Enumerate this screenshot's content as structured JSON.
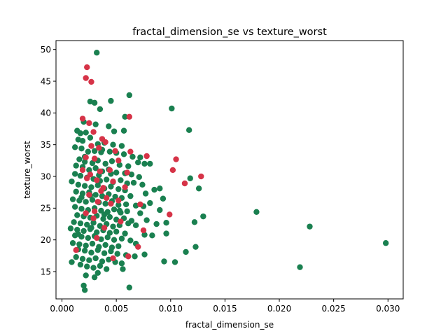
{
  "chart_data": {
    "type": "scatter",
    "title": "fractal_dimension_se vs texture_worst",
    "xlabel": "fractal_dimension_se",
    "ylabel": "texture_worst",
    "xlim": [
      -0.00055,
      0.0314
    ],
    "ylim": [
      10.7,
      51.4
    ],
    "xticks": [
      0.0,
      0.005,
      0.01,
      0.015,
      0.02,
      0.025,
      0.03
    ],
    "xtick_labels": [
      "0.000",
      "0.005",
      "0.010",
      "0.015",
      "0.020",
      "0.025",
      "0.030"
    ],
    "yticks": [
      15,
      20,
      25,
      30,
      35,
      40,
      45,
      50
    ],
    "ytick_labels": [
      "15",
      "20",
      "25",
      "30",
      "35",
      "40",
      "45",
      "50"
    ],
    "grid": false,
    "legend": "none",
    "series": [
      {
        "color": "#1a8050",
        "points": [
          [
            0.0032,
            49.5
          ],
          [
            0.0062,
            42.8
          ],
          [
            0.0026,
            41.8
          ],
          [
            0.003,
            41.6
          ],
          [
            0.0045,
            41.9
          ],
          [
            0.0101,
            40.7
          ],
          [
            0.0035,
            40.6
          ],
          [
            0.0058,
            39.4
          ],
          [
            0.002,
            38.6
          ],
          [
            0.0031,
            38.2
          ],
          [
            0.0043,
            37.9
          ],
          [
            0.0117,
            37.3
          ],
          [
            0.0014,
            37.2
          ],
          [
            0.0017,
            36.8
          ],
          [
            0.0022,
            36.9
          ],
          [
            0.0048,
            37.1
          ],
          [
            0.0057,
            37.2
          ],
          [
            0.0015,
            35.8
          ],
          [
            0.0019,
            35.6
          ],
          [
            0.0026,
            36.1
          ],
          [
            0.0033,
            35.1
          ],
          [
            0.0039,
            35.3
          ],
          [
            0.0047,
            35.0
          ],
          [
            0.0055,
            34.8
          ],
          [
            0.0012,
            34.6
          ],
          [
            0.0018,
            34.4
          ],
          [
            0.0024,
            33.9
          ],
          [
            0.003,
            34.0
          ],
          [
            0.0036,
            33.8
          ],
          [
            0.0044,
            33.9
          ],
          [
            0.005,
            33.7
          ],
          [
            0.0057,
            33.5
          ],
          [
            0.0065,
            33.1
          ],
          [
            0.0072,
            33.0
          ],
          [
            0.0016,
            32.7
          ],
          [
            0.0021,
            32.3
          ],
          [
            0.0028,
            32.1
          ],
          [
            0.0033,
            32.5
          ],
          [
            0.004,
            32.0
          ],
          [
            0.0046,
            32.4
          ],
          [
            0.0053,
            31.8
          ],
          [
            0.0061,
            31.6
          ],
          [
            0.007,
            32.2
          ],
          [
            0.0076,
            32.0
          ],
          [
            0.0081,
            32.0
          ],
          [
            0.0013,
            31.7
          ],
          [
            0.0019,
            31.5
          ],
          [
            0.0025,
            31.0
          ],
          [
            0.0031,
            31.3
          ],
          [
            0.0037,
            30.8
          ],
          [
            0.0043,
            31.1
          ],
          [
            0.005,
            30.6
          ],
          [
            0.0058,
            30.5
          ],
          [
            0.0064,
            30.3
          ],
          [
            0.0071,
            29.9
          ],
          [
            0.0012,
            30.4
          ],
          [
            0.0017,
            30.1
          ],
          [
            0.0023,
            29.8
          ],
          [
            0.0029,
            29.6
          ],
          [
            0.0035,
            29.3
          ],
          [
            0.0041,
            29.5
          ],
          [
            0.0047,
            29.1
          ],
          [
            0.0054,
            29.4
          ],
          [
            0.006,
            28.9
          ],
          [
            0.0066,
            29.0
          ],
          [
            0.0118,
            29.7
          ],
          [
            0.0009,
            29.2
          ],
          [
            0.0015,
            28.7
          ],
          [
            0.0021,
            28.5
          ],
          [
            0.0027,
            28.3
          ],
          [
            0.0033,
            28.6
          ],
          [
            0.0039,
            28.1
          ],
          [
            0.0045,
            28.4
          ],
          [
            0.0052,
            28.0
          ],
          [
            0.0058,
            27.8
          ],
          [
            0.0074,
            28.7
          ],
          [
            0.0126,
            28.1
          ],
          [
            0.0013,
            27.6
          ],
          [
            0.0019,
            27.3
          ],
          [
            0.0025,
            27.5
          ],
          [
            0.0031,
            27.1
          ],
          [
            0.0037,
            26.9
          ],
          [
            0.0043,
            27.2
          ],
          [
            0.0049,
            26.8
          ],
          [
            0.0055,
            26.6
          ],
          [
            0.0063,
            26.9
          ],
          [
            0.0077,
            27.3
          ],
          [
            0.0085,
            27.9
          ],
          [
            0.009,
            28.1
          ],
          [
            0.001,
            26.4
          ],
          [
            0.0016,
            26.2
          ],
          [
            0.0022,
            26.0
          ],
          [
            0.0028,
            26.3
          ],
          [
            0.0034,
            25.9
          ],
          [
            0.004,
            25.7
          ],
          [
            0.0046,
            26.1
          ],
          [
            0.0052,
            25.5
          ],
          [
            0.0059,
            25.6
          ],
          [
            0.0068,
            25.4
          ],
          [
            0.0075,
            25.3
          ],
          [
            0.0081,
            25.8
          ],
          [
            0.0093,
            26.5
          ],
          [
            0.0012,
            25.2
          ],
          [
            0.0018,
            24.9
          ],
          [
            0.0024,
            24.7
          ],
          [
            0.003,
            25.0
          ],
          [
            0.0036,
            24.6
          ],
          [
            0.0042,
            24.4
          ],
          [
            0.0048,
            24.8
          ],
          [
            0.0054,
            24.3
          ],
          [
            0.006,
            24.5
          ],
          [
            0.0072,
            24.2
          ],
          [
            0.009,
            24.7
          ],
          [
            0.0179,
            24.4
          ],
          [
            0.0014,
            23.9
          ],
          [
            0.002,
            23.7
          ],
          [
            0.0026,
            23.5
          ],
          [
            0.0032,
            23.8
          ],
          [
            0.0038,
            23.3
          ],
          [
            0.0044,
            23.6
          ],
          [
            0.005,
            23.2
          ],
          [
            0.0057,
            23.4
          ],
          [
            0.0064,
            23.0
          ],
          [
            0.0078,
            23.1
          ],
          [
            0.013,
            23.7
          ],
          [
            0.0011,
            22.8
          ],
          [
            0.0017,
            22.6
          ],
          [
            0.0023,
            22.4
          ],
          [
            0.0029,
            22.7
          ],
          [
            0.0035,
            22.2
          ],
          [
            0.0041,
            22.5
          ],
          [
            0.0047,
            22.1
          ],
          [
            0.0053,
            22.3
          ],
          [
            0.0061,
            22.6
          ],
          [
            0.0068,
            22.3
          ],
          [
            0.0087,
            22.5
          ],
          [
            0.0096,
            22.7
          ],
          [
            0.0122,
            22.8
          ],
          [
            0.0228,
            22.1
          ],
          [
            0.0008,
            21.8
          ],
          [
            0.0014,
            21.6
          ],
          [
            0.002,
            21.4
          ],
          [
            0.0026,
            21.7
          ],
          [
            0.0032,
            21.2
          ],
          [
            0.0038,
            21.5
          ],
          [
            0.0044,
            21.1
          ],
          [
            0.005,
            21.3
          ],
          [
            0.0058,
            21.0
          ],
          [
            0.0076,
            20.8
          ],
          [
            0.0096,
            21.0
          ],
          [
            0.0012,
            20.7
          ],
          [
            0.0018,
            20.5
          ],
          [
            0.0024,
            20.3
          ],
          [
            0.003,
            20.6
          ],
          [
            0.0036,
            20.1
          ],
          [
            0.0042,
            20.4
          ],
          [
            0.0048,
            20.0
          ],
          [
            0.0055,
            20.2
          ],
          [
            0.0063,
            19.9
          ],
          [
            0.0083,
            20.7
          ],
          [
            0.001,
            19.5
          ],
          [
            0.0016,
            19.3
          ],
          [
            0.0022,
            19.1
          ],
          [
            0.0028,
            19.4
          ],
          [
            0.0034,
            18.9
          ],
          [
            0.004,
            19.2
          ],
          [
            0.0046,
            18.8
          ],
          [
            0.0052,
            19.0
          ],
          [
            0.0068,
            19.4
          ],
          [
            0.0123,
            18.9
          ],
          [
            0.0298,
            19.5
          ],
          [
            0.0015,
            18.5
          ],
          [
            0.0021,
            18.3
          ],
          [
            0.0027,
            18.0
          ],
          [
            0.0033,
            18.4
          ],
          [
            0.0039,
            17.9
          ],
          [
            0.0045,
            18.2
          ],
          [
            0.0051,
            17.8
          ],
          [
            0.0059,
            17.6
          ],
          [
            0.0067,
            17.4
          ],
          [
            0.0076,
            17.7
          ],
          [
            0.0114,
            18.1
          ],
          [
            0.0013,
            17.3
          ],
          [
            0.0019,
            17.0
          ],
          [
            0.0025,
            16.8
          ],
          [
            0.0031,
            17.1
          ],
          [
            0.0037,
            16.6
          ],
          [
            0.0043,
            16.9
          ],
          [
            0.0049,
            16.5
          ],
          [
            0.0055,
            16.3
          ],
          [
            0.0094,
            16.6
          ],
          [
            0.0104,
            16.5
          ],
          [
            0.0009,
            16.5
          ],
          [
            0.0017,
            16.1
          ],
          [
            0.0023,
            15.8
          ],
          [
            0.0029,
            15.6
          ],
          [
            0.0035,
            15.9
          ],
          [
            0.0041,
            15.4
          ],
          [
            0.0056,
            15.4
          ],
          [
            0.0219,
            15.7
          ],
          [
            0.0022,
            14.4
          ],
          [
            0.0033,
            14.8
          ],
          [
            0.003,
            14.1
          ],
          [
            0.002,
            12.8
          ],
          [
            0.0021,
            12.1
          ],
          [
            0.0062,
            12.5
          ],
          [
            0.0015,
            20.9
          ],
          [
            0.0027,
            21.9
          ],
          [
            0.0039,
            24.0
          ],
          [
            0.0053,
            24.6
          ],
          [
            0.0018,
            26.7
          ],
          [
            0.0026,
            27.0
          ],
          [
            0.0034,
            30.2
          ],
          [
            0.0045,
            30.4
          ],
          [
            0.0021,
            33.1
          ],
          [
            0.0037,
            34.2
          ]
        ]
      },
      {
        "color": "#d63347",
        "points": [
          [
            0.0023,
            47.2
          ],
          [
            0.0022,
            45.5
          ],
          [
            0.0027,
            44.9
          ],
          [
            0.0062,
            39.4
          ],
          [
            0.0019,
            39.1
          ],
          [
            0.0025,
            38.4
          ],
          [
            0.0029,
            37.0
          ],
          [
            0.0037,
            35.9
          ],
          [
            0.004,
            35.4
          ],
          [
            0.0027,
            34.8
          ],
          [
            0.0034,
            34.5
          ],
          [
            0.0049,
            34.0
          ],
          [
            0.0063,
            33.9
          ],
          [
            0.0078,
            33.2
          ],
          [
            0.0022,
            33.0
          ],
          [
            0.003,
            32.8
          ],
          [
            0.0052,
            32.5
          ],
          [
            0.0105,
            32.7
          ],
          [
            0.0019,
            31.0
          ],
          [
            0.0026,
            30.3
          ],
          [
            0.0035,
            30.8
          ],
          [
            0.0044,
            31.0
          ],
          [
            0.006,
            30.6
          ],
          [
            0.0102,
            31.0
          ],
          [
            0.0128,
            30.0
          ],
          [
            0.0023,
            29.7
          ],
          [
            0.0032,
            29.4
          ],
          [
            0.0047,
            29.2
          ],
          [
            0.0113,
            28.9
          ],
          [
            0.0038,
            28.2
          ],
          [
            0.0025,
            27.1
          ],
          [
            0.0041,
            26.6
          ],
          [
            0.0052,
            26.2
          ],
          [
            0.0033,
            26.0
          ],
          [
            0.0045,
            25.7
          ],
          [
            0.0072,
            25.6
          ],
          [
            0.0022,
            24.2
          ],
          [
            0.0099,
            24.0
          ],
          [
            0.0029,
            23.4
          ],
          [
            0.0054,
            22.9
          ],
          [
            0.0075,
            21.5
          ],
          [
            0.0039,
            21.9
          ],
          [
            0.0032,
            20.3
          ],
          [
            0.007,
            18.9
          ],
          [
            0.0013,
            18.4
          ],
          [
            0.0061,
            17.4
          ],
          [
            0.0047,
            17.1
          ],
          [
            0.003,
            24.5
          ],
          [
            0.0036,
            27.7
          ],
          [
            0.0058,
            28.3
          ]
        ]
      }
    ]
  }
}
